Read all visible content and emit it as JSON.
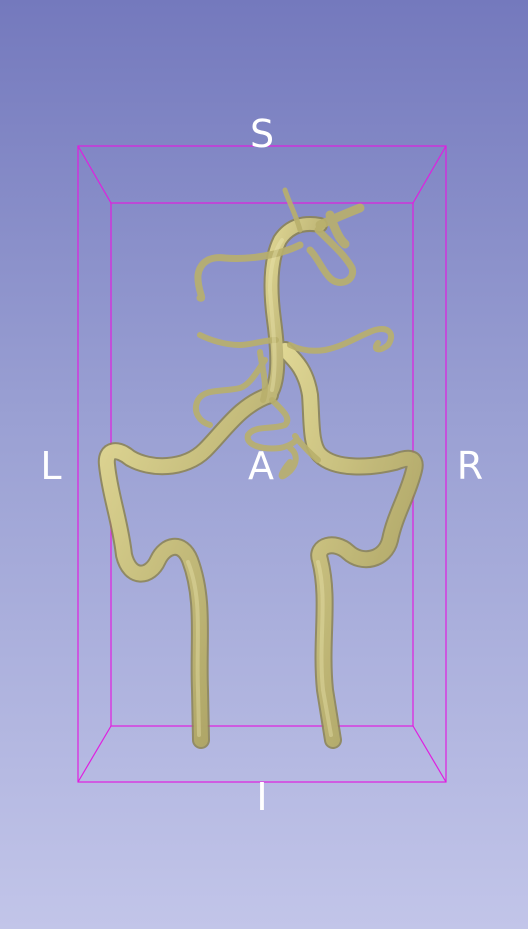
{
  "view": {
    "orientation_labels": {
      "superior": "S",
      "inferior": "I",
      "left": "L",
      "right": "R",
      "anterior": "A"
    },
    "colors": {
      "background_top": "#7479bd",
      "background_bottom": "#c2c5e9",
      "bounding_box": "#e01ee0",
      "vessel": "#c8c07a"
    },
    "icons": [
      "bounding-box-icon",
      "vessel-model-icon"
    ]
  }
}
